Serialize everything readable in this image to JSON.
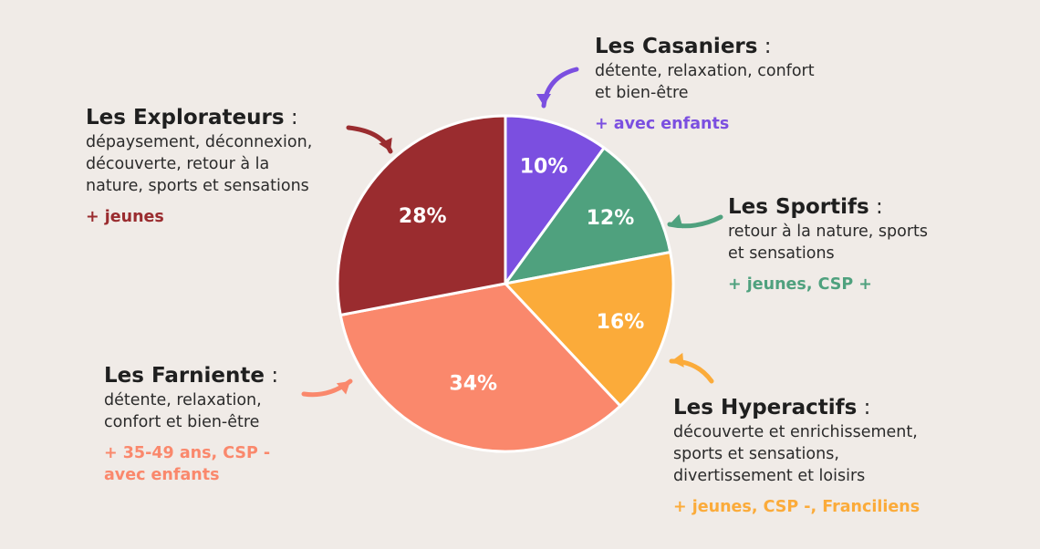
{
  "chart_data": {
    "type": "pie",
    "categories": [
      "Les Casaniers",
      "Les Sportifs",
      "Les Hyperactifs",
      "Les Farniente",
      "Les Explorateurs"
    ],
    "values": [
      10,
      12,
      16,
      34,
      28
    ],
    "value_labels": [
      "10%",
      "12%",
      "16%",
      "34%",
      "28%"
    ],
    "colors": [
      "#7b4fe0",
      "#4fa17e",
      "#fbab3a",
      "#fa886c",
      "#9a2c2f"
    ],
    "start_angle_deg_clockwise_from_top": 0,
    "legend": "callouts"
  },
  "segments": [
    {
      "title": "Les Casaniers",
      "colon": " :",
      "desc": "détente, relaxation, confort\net bien-être",
      "target": "+ avec enfants",
      "color": "#7b4fe0"
    },
    {
      "title": "Les Sportifs",
      "colon": " :",
      "desc": "retour à la nature, sports\net sensations",
      "target": "+ jeunes, CSP +",
      "color": "#4fa17e"
    },
    {
      "title": "Les Hyperactifs",
      "colon": " :",
      "desc": "découverte et enrichissement,\nsports et sensations,\ndivertissement et loisirs",
      "target": "+ jeunes, CSP -, Franciliens",
      "color": "#fbab3a"
    },
    {
      "title": "Les Farniente",
      "colon": " :",
      "desc": "détente, relaxation,\nconfort et bien-être",
      "target": "+ 35-49 ans, CSP -\navec enfants",
      "color": "#fa886c"
    },
    {
      "title": "Les Explorateurs",
      "colon": " :",
      "desc": "dépaysement, déconnexion,\ndécouverte, retour à la\nnature, sports et sensations",
      "target": "+ jeunes",
      "color": "#9a2c2f"
    }
  ]
}
